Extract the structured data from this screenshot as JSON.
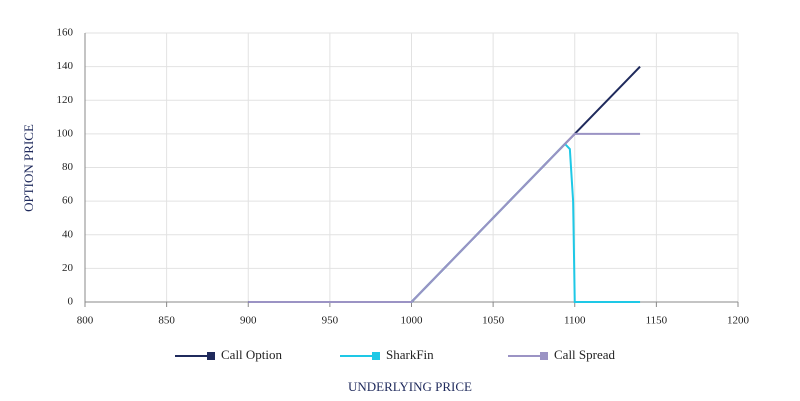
{
  "chart_data": {
    "type": "line",
    "x_label": "UNDERLYING PRICE",
    "y_label": "OPTION PRICE",
    "series": [
      {
        "name": "Call Option",
        "color": "#1f2a5c",
        "x": [
          900,
          1000,
          1140
        ],
        "values": [
          0,
          0,
          140
        ]
      },
      {
        "name": "SharkFin",
        "color": "#1ec8e6",
        "x": [
          1000,
          1094,
          1097,
          1099,
          1100,
          1140
        ],
        "values": [
          0,
          94,
          91,
          60,
          0,
          0
        ]
      },
      {
        "name": "Call Spread",
        "color": "#9b93c4",
        "x": [
          900,
          1000,
          1100,
          1140
        ],
        "values": [
          0,
          0,
          100,
          100
        ]
      }
    ],
    "xlim": [
      800,
      1200
    ],
    "xticks": [
      800,
      850,
      900,
      950,
      1000,
      1050,
      1100,
      1150,
      1200
    ],
    "ylim": [
      0,
      160
    ],
    "yticks": [
      0,
      20,
      40,
      60,
      80,
      100,
      120,
      140,
      160
    ],
    "grid": true,
    "legend": "bottom"
  }
}
